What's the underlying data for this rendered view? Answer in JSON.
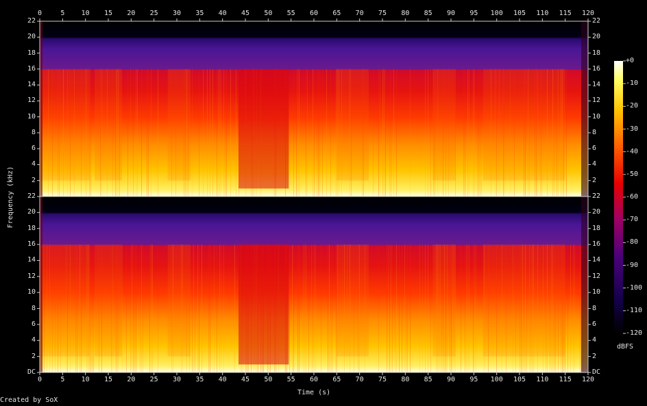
{
  "chart_data": {
    "type": "heatmap",
    "title": "",
    "xlabel": "Time (s)",
    "ylabel": "Frequency (kHz)",
    "xlim": [
      0,
      120
    ],
    "ylim": [
      0,
      22
    ],
    "x_ticks": [
      "0",
      "5",
      "10",
      "15",
      "20",
      "25",
      "30",
      "35",
      "40",
      "45",
      "50",
      "55",
      "60",
      "65",
      "70",
      "75",
      "80",
      "85",
      "90",
      "95",
      "100",
      "105",
      "110",
      "115",
      "120"
    ],
    "y_ticks": [
      "DC",
      "2",
      "4",
      "6",
      "8",
      "10",
      "12",
      "14",
      "16",
      "18",
      "20",
      "22"
    ],
    "colorbar": {
      "label": "dBFS",
      "ticks": [
        "+0",
        "-10",
        "-20",
        "-30",
        "-40",
        "-50",
        "-60",
        "-70",
        "-80",
        "-90",
        "-100",
        "-110",
        "-120"
      ],
      "range": [
        -120,
        0
      ]
    },
    "channels": [
      "upper",
      "lower"
    ],
    "lowpass_khz": 16,
    "quiet_passage_s": [
      43.5,
      54.5
    ],
    "high_energy_passages_s": [
      [
        0,
        11
      ],
      [
        12,
        18
      ],
      [
        28,
        33
      ],
      [
        65,
        72
      ],
      [
        86,
        91
      ],
      [
        97,
        108
      ],
      [
        108,
        115
      ]
    ]
  },
  "footer": {
    "credit": "Created by SoX"
  },
  "colors": {
    "background": "#000000",
    "text": "#e6e6e6"
  }
}
